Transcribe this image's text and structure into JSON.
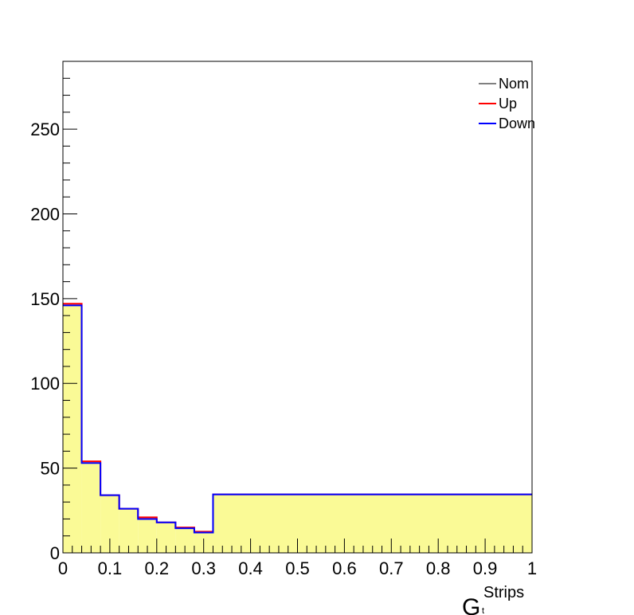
{
  "chart_data": {
    "type": "histogram",
    "xlabel": "G",
    "xlabel_superscript": "Strips",
    "xlabel_subscript": "t",
    "ylabel": "",
    "xlim": [
      0,
      1
    ],
    "ylim": [
      0,
      290
    ],
    "x_ticks": [
      "0",
      "0.1",
      "0.2",
      "0.3",
      "0.4",
      "0.5",
      "0.6",
      "0.7",
      "0.8",
      "0.9",
      "1"
    ],
    "y_ticks": [
      "0",
      "50",
      "100",
      "150",
      "200",
      "250"
    ],
    "bin_edges": [
      0,
      0.04,
      0.08,
      0.12,
      0.16,
      0.2,
      0.24,
      0.28,
      0.32,
      1.0
    ],
    "series": [
      {
        "name": "Nom",
        "values": [
          147,
          54,
          34,
          26,
          21,
          18,
          15,
          12.5,
          34.5
        ]
      },
      {
        "name": "Up",
        "values": [
          147,
          54,
          34,
          26,
          21,
          18,
          15,
          12.5,
          34.5
        ]
      },
      {
        "name": "Down",
        "values": [
          146,
          53,
          34,
          26,
          20,
          18,
          14.5,
          12,
          34.5
        ]
      }
    ],
    "legend_position": "top-right",
    "grid": false
  },
  "colors": {
    "fill": "#fafa96",
    "nom": "#000000",
    "up": "#ff0000",
    "down": "#0000ff"
  }
}
